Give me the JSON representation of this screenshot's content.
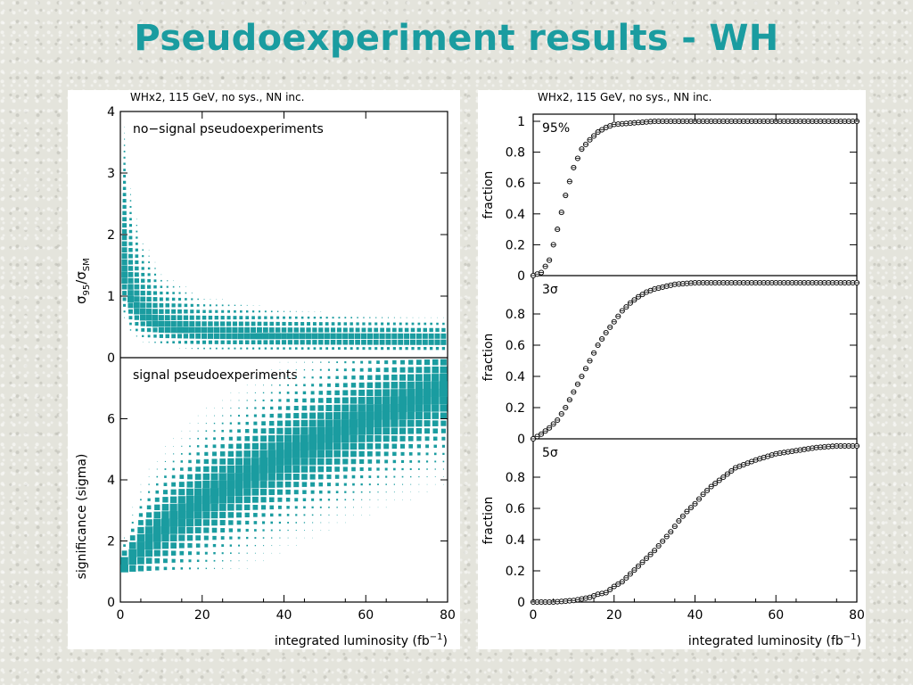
{
  "title": "Pseudoexperiment results - WH",
  "left_panel": {
    "header": "WHx2, 115 GeV, no sys., NN inc.",
    "top_annotation": "no−signal  pseudoexperiments",
    "bottom_annotation": "signal  pseudoexperiments",
    "top_ylabel": "σ_95/σ_SM",
    "bottom_ylabel": "significance  (sigma)",
    "xlabel": "integrated  luminosity  (fb⁻¹)"
  },
  "right_panel": {
    "header": "WHx2, 115 GeV, no sys., NN inc.",
    "ylabel": "fraction",
    "xlabel": "integrated  luminosity  (fb⁻¹)"
  },
  "chart_data": [
    {
      "type": "heatmap",
      "title": "no-signal pseudoexperiments",
      "ylabel": "σ_95/σ_SM",
      "xlim": [
        0,
        80
      ],
      "ylim": [
        0,
        4
      ],
      "x_ticks": [
        0,
        20,
        40,
        60,
        80
      ],
      "y_ticks": [
        0,
        1,
        2,
        3,
        4
      ],
      "color": "#1a9ca0",
      "band": {
        "lumi": [
          1,
          2,
          5,
          10,
          20,
          40,
          60,
          80
        ],
        "y_peak": [
          1.3,
          1.0,
          0.7,
          0.5,
          0.4,
          0.33,
          0.3,
          0.28
        ],
        "y_upper": [
          3.8,
          3.0,
          2.0,
          1.4,
          1.0,
          0.8,
          0.7,
          0.65
        ],
        "y_lower": [
          0.6,
          0.4,
          0.25,
          0.18,
          0.1,
          0.08,
          0.07,
          0.06
        ]
      }
    },
    {
      "type": "heatmap",
      "title": "signal pseudoexperiments",
      "ylabel": "significance  (sigma)",
      "xlabel": "integrated  luminosity  (fb⁻¹)",
      "xlim": [
        0,
        80
      ],
      "ylim": [
        0,
        8
      ],
      "x_ticks": [
        0,
        20,
        40,
        60,
        80
      ],
      "y_ticks": [
        0,
        2,
        4,
        6
      ],
      "color": "#1a9ca0",
      "band": {
        "lumi": [
          1,
          5,
          10,
          20,
          40,
          60,
          80
        ],
        "y_center": [
          1.2,
          1.8,
          2.4,
          3.3,
          4.8,
          6.0,
          7.0
        ],
        "y_spread": [
          0.5,
          1.0,
          1.2,
          1.4,
          1.5,
          1.5,
          1.5
        ]
      }
    },
    {
      "type": "scatter",
      "label": "95%",
      "ylabel": "fraction",
      "xlim": [
        0,
        80
      ],
      "ylim": [
        0,
        1
      ],
      "y_ticks": [
        0,
        0.2,
        0.4,
        0.6,
        0.8,
        1
      ],
      "x": [
        0,
        2,
        4,
        6,
        8,
        10,
        12,
        14,
        16,
        18,
        20,
        25,
        30,
        40,
        50,
        60,
        70,
        80
      ],
      "y": [
        0,
        0.02,
        0.1,
        0.3,
        0.52,
        0.7,
        0.82,
        0.88,
        0.93,
        0.96,
        0.98,
        0.99,
        1.0,
        1.0,
        1.0,
        1.0,
        1.0,
        1.0
      ]
    },
    {
      "type": "scatter",
      "label": "3σ",
      "ylabel": "fraction",
      "xlim": [
        0,
        80
      ],
      "ylim": [
        0,
        1
      ],
      "y_ticks": [
        0,
        0.2,
        0.4,
        0.6,
        0.8
      ],
      "x": [
        0,
        2,
        4,
        6,
        8,
        10,
        12,
        14,
        16,
        18,
        20,
        22,
        24,
        26,
        28,
        30,
        35,
        40,
        50,
        60,
        70,
        80
      ],
      "y": [
        0,
        0.03,
        0.07,
        0.12,
        0.2,
        0.3,
        0.4,
        0.5,
        0.6,
        0.68,
        0.75,
        0.82,
        0.87,
        0.91,
        0.94,
        0.96,
        0.99,
        1.0,
        1.0,
        1.0,
        1.0,
        1.0
      ]
    },
    {
      "type": "scatter",
      "label": "5σ",
      "ylabel": "fraction",
      "xlabel": "integrated  luminosity  (fb⁻¹)",
      "xlim": [
        0,
        80
      ],
      "ylim": [
        0,
        1
      ],
      "x_ticks": [
        0,
        20,
        40,
        60,
        80
      ],
      "y_ticks": [
        0,
        0.2,
        0.4,
        0.6,
        0.8
      ],
      "x": [
        0,
        5,
        10,
        14,
        16,
        18,
        20,
        22,
        24,
        26,
        28,
        30,
        32,
        34,
        36,
        38,
        40,
        42,
        44,
        46,
        48,
        50,
        55,
        60,
        65,
        70,
        75,
        80
      ],
      "y": [
        0,
        0,
        0.01,
        0.03,
        0.05,
        0.06,
        0.1,
        0.13,
        0.18,
        0.23,
        0.28,
        0.33,
        0.39,
        0.45,
        0.52,
        0.58,
        0.63,
        0.69,
        0.74,
        0.78,
        0.82,
        0.86,
        0.91,
        0.95,
        0.97,
        0.99,
        1.0,
        1.0
      ]
    }
  ]
}
